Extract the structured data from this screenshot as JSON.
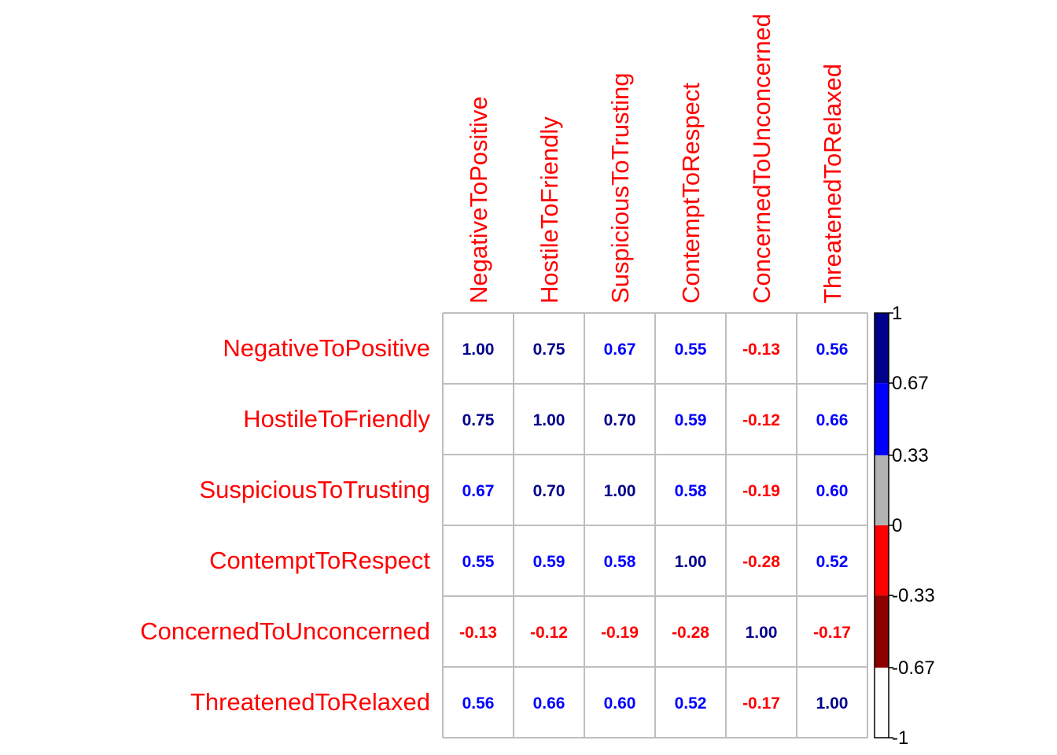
{
  "chart_data": {
    "type": "heatmap",
    "variables": [
      "NegativeToPositive",
      "HostileToFriendly",
      "SuspiciousToTrusting",
      "ContemptToRespect",
      "ConcernedToUnconcerned",
      "ThreatenedToRelaxed"
    ],
    "matrix": [
      [
        1.0,
        0.75,
        0.67,
        0.55,
        -0.13,
        0.56
      ],
      [
        0.75,
        1.0,
        0.7,
        0.59,
        -0.12,
        0.66
      ],
      [
        0.67,
        0.7,
        1.0,
        0.58,
        -0.19,
        0.6
      ],
      [
        0.55,
        0.59,
        0.58,
        1.0,
        -0.28,
        0.52
      ],
      [
        -0.13,
        -0.12,
        -0.19,
        -0.28,
        1.0,
        -0.17
      ],
      [
        0.56,
        0.66,
        0.6,
        0.52,
        -0.17,
        1.0
      ]
    ],
    "value_labels": [
      [
        "1.00",
        "0.75",
        "0.67",
        "0.55",
        "-0.13",
        "0.56"
      ],
      [
        "0.75",
        "1.00",
        "0.70",
        "0.59",
        "-0.12",
        "0.66"
      ],
      [
        "0.67",
        "0.70",
        "1.00",
        "0.58",
        "-0.19",
        "0.60"
      ],
      [
        "0.55",
        "0.59",
        "0.58",
        "1.00",
        "-0.28",
        "0.52"
      ],
      [
        "-0.13",
        "-0.12",
        "-0.19",
        "-0.28",
        "1.00",
        "-0.17"
      ],
      [
        "0.56",
        "0.66",
        "0.60",
        "0.52",
        "-0.17",
        "1.00"
      ]
    ],
    "colorbar": {
      "bins": [
        {
          "from": -1,
          "to": -0.67,
          "color": "#ffffff"
        },
        {
          "from": -0.67,
          "to": -0.33,
          "color": "#8b0000"
        },
        {
          "from": -0.33,
          "to": 0,
          "color": "#ff0000"
        },
        {
          "from": 0,
          "to": 0.33,
          "color": "#b3b3b3"
        },
        {
          "from": 0.33,
          "to": 0.67,
          "color": "#0000ff"
        },
        {
          "from": 0.67,
          "to": 1,
          "color": "#00008b"
        }
      ],
      "ticks": [
        1,
        0.67,
        0.33,
        0,
        -0.33,
        -0.67,
        -1
      ],
      "tick_labels": [
        "1",
        "0.67",
        "0.33",
        "0",
        "-0.33",
        "-0.67",
        "-1"
      ]
    },
    "label_color": "#ff0000",
    "grid_color": "#bebebe",
    "legend_position": "right"
  }
}
